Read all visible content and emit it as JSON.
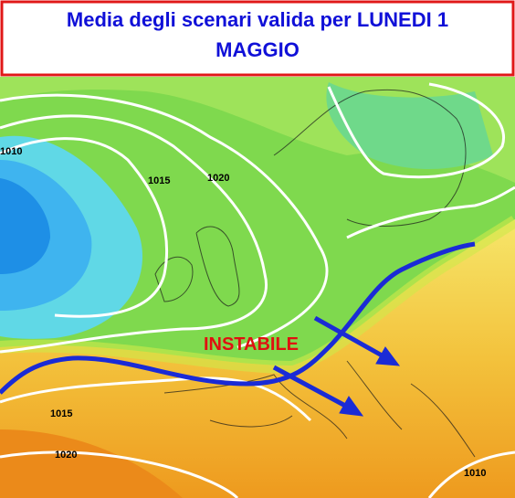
{
  "header": {
    "title_line1": "Media degli scenari valida per LUNEDI 1",
    "title_line2": "MAGGIO"
  },
  "annotation": "INSTABILE",
  "isobar_labels": [
    "1010",
    "1015",
    "1020",
    "1015",
    "1020",
    "1010"
  ]
}
